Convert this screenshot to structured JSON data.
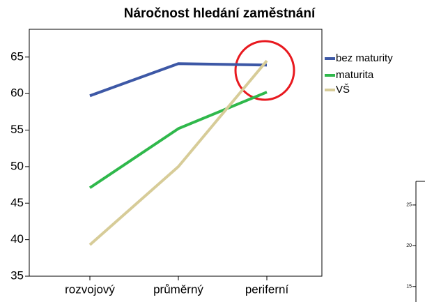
{
  "chart_data": [
    {
      "type": "line",
      "title": "Náročnost hledání zaměstnání",
      "categories": [
        "rozvojový",
        "průměrný",
        "periferní"
      ],
      "series": [
        {
          "name": "bez maturity",
          "color": "#3d58a6",
          "values": [
            59.7,
            64.1,
            63.9
          ]
        },
        {
          "name": "maturita",
          "color": "#2fb84b",
          "values": [
            47.1,
            55.2,
            60.2
          ]
        },
        {
          "name": "VŠ",
          "color": "#d7cc98",
          "values": [
            39.3,
            50.0,
            64.5
          ]
        }
      ],
      "ylim": [
        35,
        68.8
      ],
      "yticks": [
        35,
        40,
        45,
        50,
        55,
        60,
        65
      ],
      "legend": "right"
    },
    {
      "type": "line",
      "series": [],
      "ylim": [
        13.1,
        27.9
      ],
      "yticks": [
        15,
        20,
        25
      ]
    }
  ]
}
